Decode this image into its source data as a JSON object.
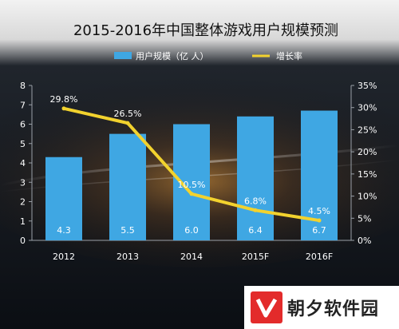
{
  "chart_data": {
    "type": "bar",
    "title": "2015-2016年中国整体游戏用户规模预测",
    "categories": [
      "2012",
      "2013",
      "2014",
      "2015F",
      "2016F"
    ],
    "series": [
      {
        "name": "用户规模（亿 人）",
        "type": "bar",
        "axis": "left",
        "values": [
          4.3,
          5.5,
          6.0,
          6.4,
          6.7
        ],
        "labels": [
          "4.3",
          "5.5",
          "6.0",
          "6.4",
          "6.7"
        ]
      },
      {
        "name": "增长率",
        "type": "line",
        "axis": "right",
        "values": [
          29.8,
          26.5,
          10.5,
          6.8,
          4.5
        ],
        "labels": [
          "29.8%",
          "26.5%",
          "10.5%",
          "6.8%",
          "4.5%"
        ]
      }
    ],
    "left_axis": {
      "min": 0,
      "max": 8,
      "ticks": [
        "0",
        "1",
        "2",
        "3",
        "4",
        "5",
        "6",
        "7",
        "8"
      ]
    },
    "right_axis": {
      "min": 0,
      "max": 35,
      "ticks": [
        "0%",
        "5%",
        "10%",
        "15%",
        "20%",
        "25%",
        "30%",
        "35%"
      ]
    },
    "legend_position": "top",
    "grid": false,
    "colors": {
      "bar": "#3fa7e3",
      "line": "#f2d22e",
      "background": "#0d1016",
      "text": "#ffffff",
      "title": "#111111",
      "panel_top": "#e9e9e9"
    }
  },
  "watermark": {
    "text": "朝夕软件园"
  }
}
